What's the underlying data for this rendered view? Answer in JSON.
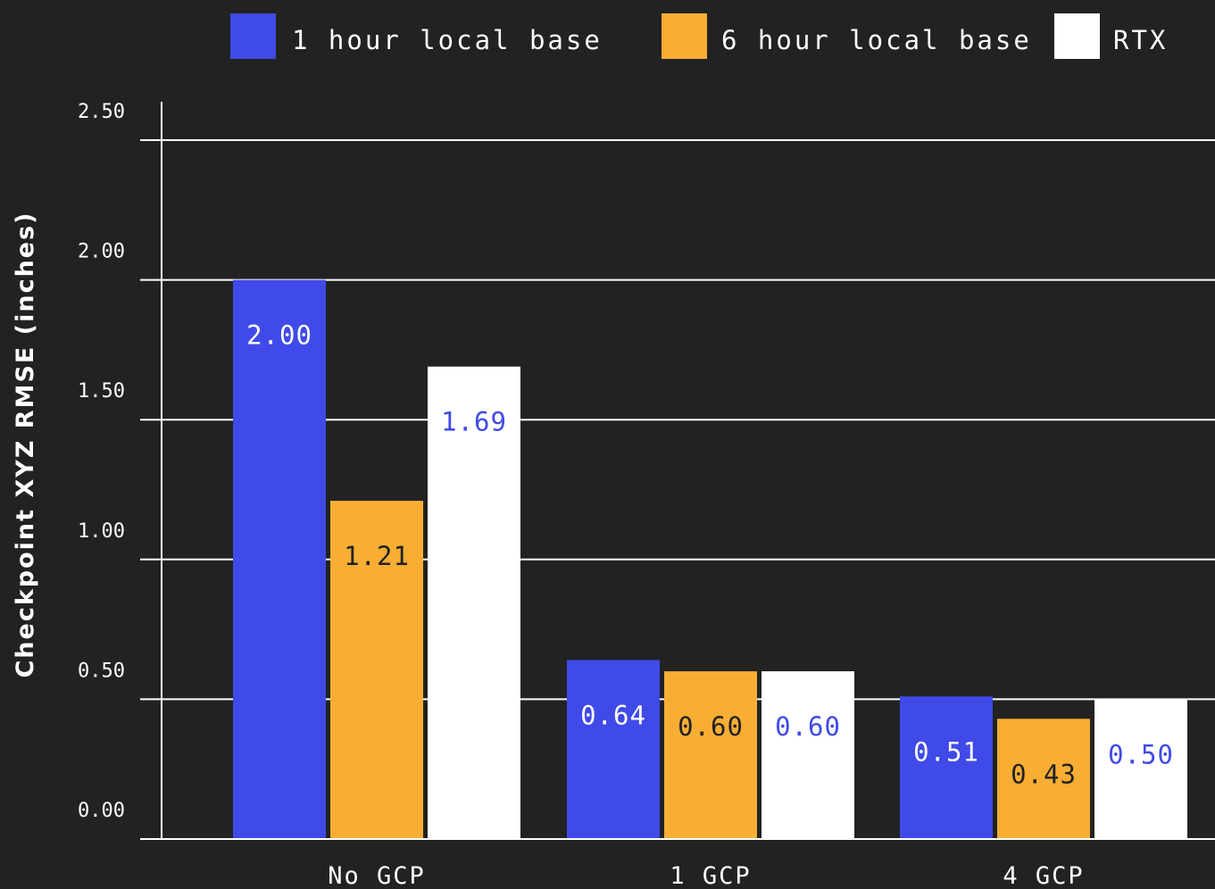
{
  "colors": {
    "background": "#222222",
    "axis": "#ffffff",
    "grid": "#ffffff"
  },
  "chart_data": {
    "type": "bar",
    "title": "",
    "xlabel": "",
    "ylabel": "Checkpoint XYZ RMSE (inches)",
    "categories": [
      "No GCP",
      "1 GCP",
      "4 GCP"
    ],
    "series": [
      {
        "name": "1 hour local base",
        "color": "#404AE8",
        "label_color": "#ffffff",
        "values": [
          2.0,
          0.64,
          0.51
        ]
      },
      {
        "name": "6 hour local base",
        "color": "#F8AE34",
        "label_color": "#222222",
        "values": [
          1.21,
          0.6,
          0.43
        ]
      },
      {
        "name": "RTX",
        "color": "#ffffff",
        "label_color": "#404AE8",
        "values": [
          1.69,
          0.6,
          0.5
        ]
      }
    ],
    "value_labels": [
      [
        "2.00",
        "0.64",
        "0.51"
      ],
      [
        "1.21",
        "0.60",
        "0.43"
      ],
      [
        "1.69",
        "0.60",
        "0.50"
      ]
    ],
    "yticks": [
      {
        "value": 0.0,
        "label": "0.00"
      },
      {
        "value": 0.5,
        "label": "0.50"
      },
      {
        "value": 1.0,
        "label": "1.00"
      },
      {
        "value": 1.5,
        "label": "1.50"
      },
      {
        "value": 2.0,
        "label": "2.00"
      },
      {
        "value": 2.5,
        "label": "2.50"
      }
    ],
    "ylim": [
      0,
      2.5
    ],
    "grid": true,
    "legend_position": "top"
  }
}
